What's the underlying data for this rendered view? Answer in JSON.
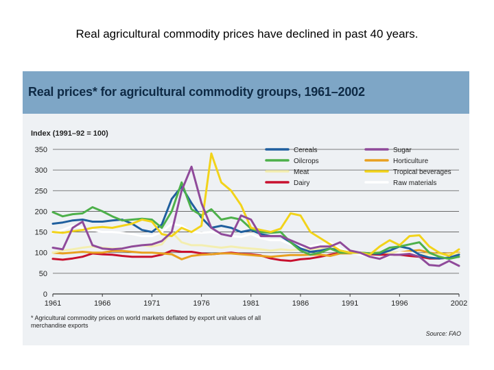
{
  "slide": {
    "title": "Real agricultural commodity prices have declined in past 40 years."
  },
  "figure": {
    "title": "Real prices* for agricultural commodity groups, 1961–2002",
    "footnote": "* Agricultural commodity prices on world markets deflated by export unit values of all merchandise exports",
    "source": "Source: FAO",
    "banner_color": "#7ea6c6"
  },
  "chart_data": {
    "type": "line",
    "ylabel": "Index (1991–92 = 100)",
    "xlabel": "",
    "ylim": [
      0,
      350
    ],
    "xlim": [
      1961,
      2002
    ],
    "yticks": [
      0,
      50,
      100,
      150,
      200,
      250,
      300,
      350
    ],
    "xticks": [
      1961,
      1966,
      1971,
      1976,
      1981,
      1986,
      1991,
      1996,
      2002
    ],
    "grid": "horizontal",
    "legend_placement": "top-right",
    "x": [
      1961,
      1962,
      1963,
      1964,
      1965,
      1966,
      1967,
      1968,
      1969,
      1970,
      1971,
      1972,
      1973,
      1974,
      1975,
      1976,
      1977,
      1978,
      1979,
      1980,
      1981,
      1982,
      1983,
      1984,
      1985,
      1986,
      1987,
      1988,
      1989,
      1990,
      1991,
      1992,
      1993,
      1994,
      1995,
      1996,
      1997,
      1998,
      1999,
      2000,
      2001,
      2002
    ],
    "series": [
      {
        "name": "Cereals",
        "color": "#1f5f9e",
        "values": [
          170,
          173,
          178,
          180,
          175,
          175,
          178,
          180,
          170,
          155,
          150,
          168,
          230,
          260,
          220,
          185,
          160,
          165,
          160,
          150,
          155,
          145,
          140,
          140,
          125,
          110,
          102,
          105,
          110,
          105,
          100,
          100,
          98,
          97,
          105,
          115,
          110,
          95,
          88,
          86,
          88,
          95
        ]
      },
      {
        "name": "Oilcrops",
        "color": "#4db04a",
        "values": [
          198,
          188,
          193,
          195,
          210,
          200,
          188,
          178,
          180,
          182,
          180,
          160,
          200,
          270,
          205,
          190,
          205,
          180,
          185,
          180,
          158,
          150,
          148,
          150,
          125,
          105,
          95,
          100,
          110,
          100,
          100,
          100,
          98,
          100,
          112,
          115,
          120,
          125,
          100,
          90,
          85,
          90
        ]
      },
      {
        "name": "Meat",
        "color": "#f3eeb0",
        "values": [
          100,
          105,
          108,
          112,
          115,
          112,
          110,
          110,
          115,
          118,
          115,
          120,
          150,
          125,
          118,
          118,
          115,
          112,
          115,
          112,
          110,
          108,
          105,
          108,
          106,
          108,
          108,
          110,
          110,
          104,
          102,
          100,
          100,
          102,
          100,
          100,
          98,
          96,
          96,
          95,
          96,
          98
        ]
      },
      {
        "name": "Dairy",
        "color": "#c8102e",
        "values": [
          85,
          83,
          86,
          90,
          98,
          96,
          95,
          92,
          90,
          90,
          90,
          95,
          105,
          102,
          102,
          98,
          96,
          98,
          100,
          97,
          96,
          93,
          86,
          82,
          80,
          84,
          86,
          90,
          95,
          100,
          100,
          100,
          96,
          95,
          95,
          95,
          92,
          90,
          86,
          86,
          88,
          90
        ]
      },
      {
        "name": "Sugar",
        "color": "#8f4a9a",
        "values": [
          112,
          108,
          160,
          175,
          118,
          110,
          108,
          110,
          115,
          118,
          120,
          128,
          150,
          250,
          308,
          220,
          160,
          145,
          140,
          190,
          180,
          140,
          140,
          140,
          130,
          120,
          110,
          115,
          115,
          125,
          105,
          100,
          90,
          85,
          95,
          95,
          97,
          90,
          70,
          68,
          80,
          68
        ]
      },
      {
        "name": "Horticulture",
        "color": "#e8a020",
        "values": [
          100,
          98,
          100,
          102,
          100,
          100,
          104,
          104,
          102,
          100,
          100,
          98,
          96,
          84,
          92,
          95,
          96,
          98,
          98,
          96,
          94,
          92,
          90,
          92,
          94,
          94,
          95,
          95,
          92,
          98,
          98,
          100,
          98,
          100,
          100,
          100,
          104,
          106,
          100,
          96,
          98,
          100
        ]
      },
      {
        "name": "Tropical beverages",
        "color": "#f2d31a",
        "values": [
          150,
          148,
          152,
          155,
          160,
          162,
          160,
          165,
          170,
          180,
          175,
          145,
          140,
          160,
          150,
          165,
          340,
          270,
          250,
          215,
          160,
          155,
          150,
          158,
          195,
          190,
          150,
          135,
          120,
          105,
          100,
          100,
          95,
          115,
          130,
          118,
          140,
          142,
          115,
          100,
          92,
          108
        ]
      },
      {
        "name": "Raw materials",
        "color": "#ffffff",
        "values": [
          148,
          155,
          165,
          160,
          155,
          150,
          150,
          148,
          145,
          140,
          140,
          150,
          170,
          165,
          150,
          148,
          150,
          145,
          140,
          138,
          145,
          135,
          130,
          130,
          120,
          115,
          115,
          120,
          125,
          110,
          100,
          95,
          90,
          85,
          92,
          100,
          100,
          96,
          90,
          88,
          88,
          92
        ]
      }
    ]
  }
}
